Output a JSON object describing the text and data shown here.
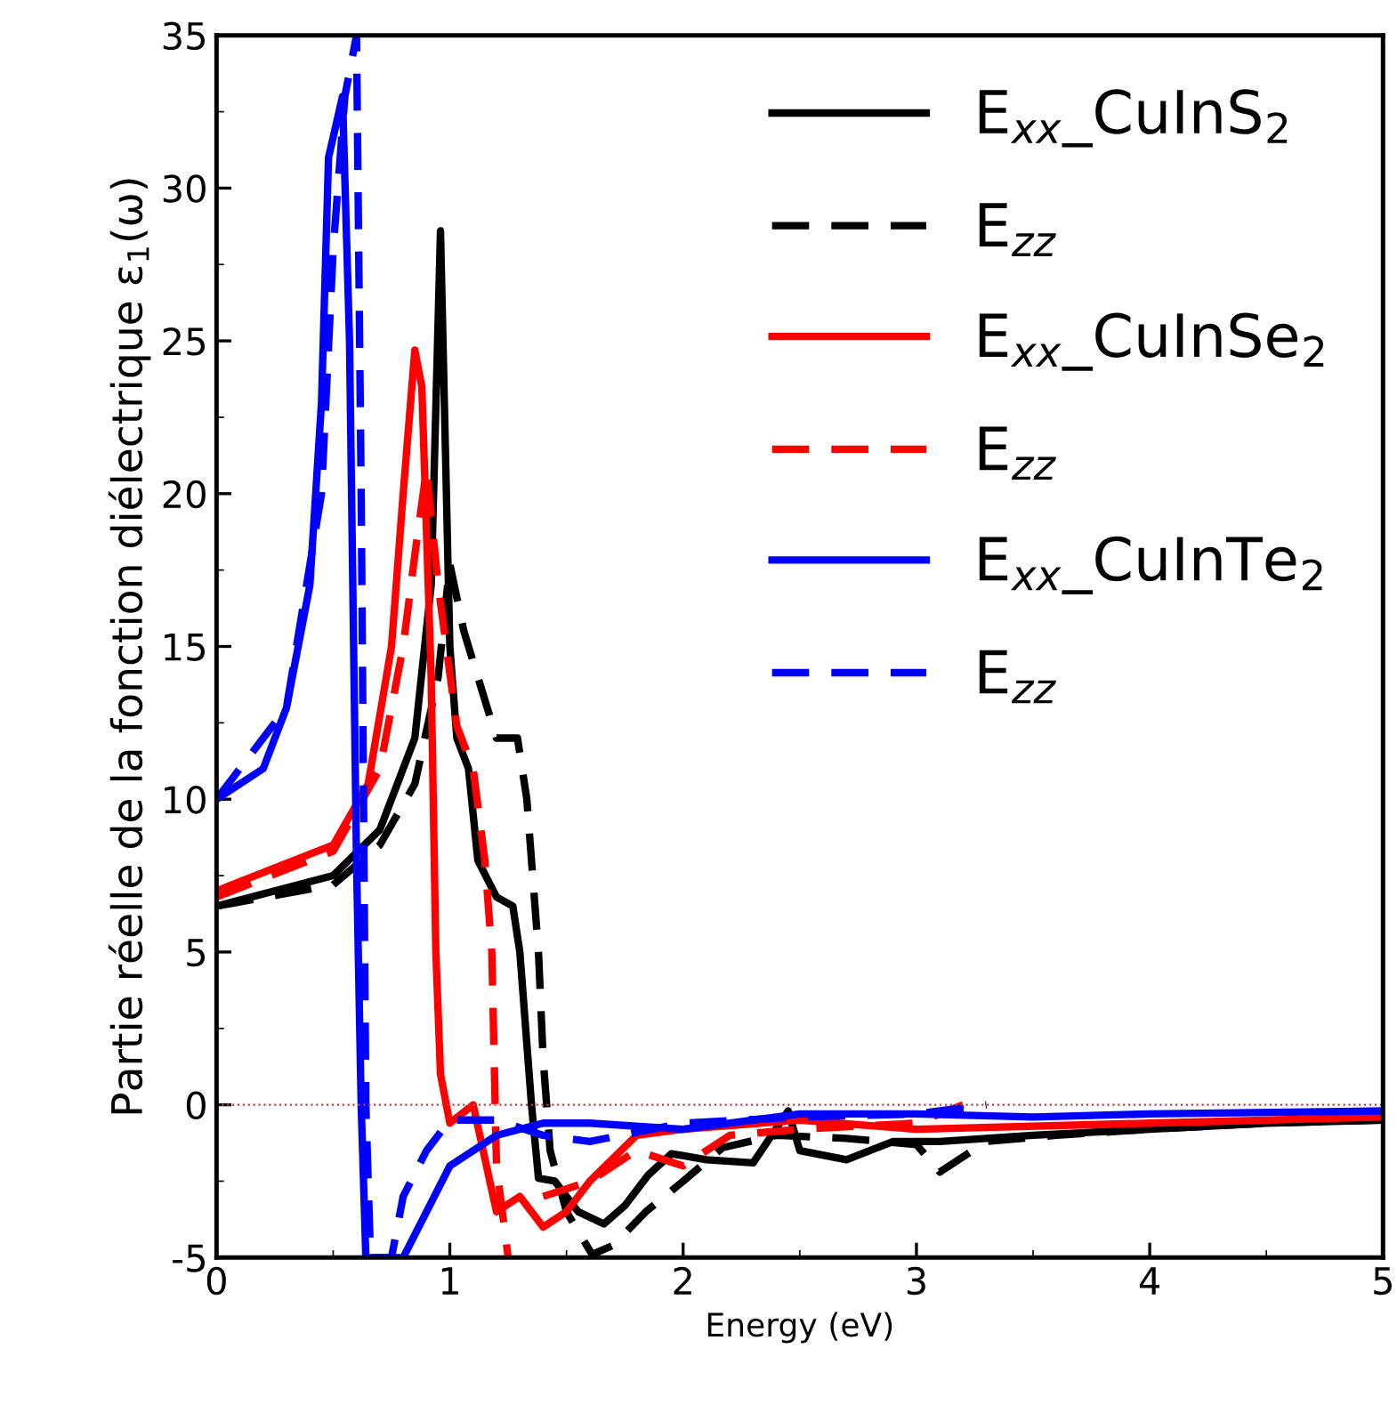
{
  "chart_data": {
    "type": "line",
    "xlabel": "Energy (eV)",
    "ylabel": "Partie réelle de la fonction diélectrique ε$_{1}$(ω)",
    "xlim": [
      0,
      5
    ],
    "ylim": [
      -5,
      35
    ],
    "xticks": [
      0,
      1,
      2,
      3,
      4,
      5
    ],
    "yticks": [
      -5,
      0,
      5,
      10,
      15,
      20,
      25,
      30,
      35
    ],
    "legend": "top right",
    "grid": false,
    "ref_lines": [
      {
        "axis": "y",
        "value": 0,
        "color": "#c04040",
        "line_style": "dotted"
      }
    ],
    "series": [
      {
        "name": "E$_{xx}$_CuInS$_{2}$",
        "color": "#000000",
        "line_style": "solid",
        "x": [
          0,
          0.5,
          0.7,
          0.85,
          0.92,
          0.96,
          1.0,
          1.03,
          1.08,
          1.12,
          1.2,
          1.27,
          1.3,
          1.35,
          1.38,
          1.45,
          1.55,
          1.66,
          1.75,
          1.85,
          1.95,
          2.1,
          2.3,
          2.45,
          2.5,
          2.7,
          2.9,
          3.1,
          3.5,
          4.0,
          4.5,
          5.0
        ],
        "values": [
          6.5,
          7.5,
          9,
          12,
          17,
          28.6,
          15,
          12,
          11,
          8,
          6.8,
          6.5,
          5,
          0,
          -2.4,
          -2.5,
          -3.5,
          -3.9,
          -3.3,
          -2.3,
          -1.6,
          -1.8,
          -1.9,
          -0.2,
          -1.5,
          -1.8,
          -1.2,
          -1.2,
          -1.0,
          -0.8,
          -0.6,
          -0.5
        ]
      },
      {
        "name": "E$_{zz}$",
        "color": "#000000",
        "line_style": "dashed",
        "x": [
          0,
          0.5,
          0.7,
          0.85,
          0.95,
          1.0,
          1.06,
          1.12,
          1.2,
          1.29,
          1.33,
          1.38,
          1.4,
          1.43,
          1.5,
          1.61,
          1.7,
          1.84,
          2.0,
          2.17,
          2.4,
          2.7,
          3.0,
          3.1,
          3.3,
          3.6,
          4.0,
          4.5,
          5.0
        ],
        "values": [
          6.5,
          7.2,
          8.5,
          10.5,
          14,
          17.7,
          15.5,
          14,
          12,
          12,
          10,
          5,
          1.5,
          -1.5,
          -3.5,
          -4.9,
          -4.6,
          -3.5,
          -2.5,
          -1.4,
          -1.0,
          -1.1,
          -1.3,
          -2.2,
          -1.2,
          -1.0,
          -0.8,
          -0.6,
          -0.5
        ]
      },
      {
        "name": "E$_{xx}$_CuInSe$_{2}$",
        "color": "#ff0000",
        "line_style": "solid",
        "x": [
          0,
          0.5,
          0.65,
          0.75,
          0.8,
          0.85,
          0.88,
          0.92,
          0.94,
          0.96,
          1.0,
          1.1,
          1.2,
          1.3,
          1.4,
          1.5,
          1.6,
          1.8,
          2.0,
          2.5,
          3.0,
          4.0,
          5.0
        ],
        "values": [
          7.0,
          8.5,
          10.5,
          15,
          20,
          24.7,
          23.5,
          14,
          5,
          1,
          -0.6,
          0,
          -3.5,
          -3,
          -4,
          -3.5,
          -2.5,
          -1.0,
          -0.8,
          -0.5,
          -0.8,
          -0.6,
          -0.4
        ]
      },
      {
        "name": "E$_{zz}$",
        "color": "#ff0000",
        "line_style": "dashed",
        "x": [
          0,
          0.5,
          0.7,
          0.8,
          0.85,
          0.9,
          0.95,
          1.03,
          1.1,
          1.15,
          1.18,
          1.2,
          1.25,
          1.3,
          1.4,
          1.6,
          1.8,
          2.0,
          2.2,
          2.5,
          3.0,
          3.2
        ],
        "values": [
          6.8,
          8.3,
          11,
          15,
          18,
          20.8,
          17,
          12.4,
          11,
          8,
          5,
          -2,
          -5,
          null,
          -3,
          -2.5,
          -1.5,
          -2.0,
          -1.0,
          -0.8,
          -0.6,
          0
        ]
      },
      {
        "name": "E$_{xx}$_CuInTe$_{2}$",
        "color": "#0000ff",
        "line_style": "solid",
        "x": [
          0,
          0.2,
          0.3,
          0.4,
          0.45,
          0.48,
          0.54,
          0.57,
          0.6,
          0.62,
          0.64,
          0.8,
          0.9,
          1.0,
          1.2,
          1.4,
          1.6,
          2.0,
          2.5,
          3.0,
          3.5,
          4.0,
          5.0
        ],
        "values": [
          10,
          11,
          13,
          17,
          23,
          31,
          33,
          25,
          8,
          0,
          -5,
          -5,
          -3.5,
          -2,
          -1,
          -0.6,
          -0.6,
          -0.8,
          -0.3,
          -0.3,
          -0.4,
          -0.3,
          -0.2
        ]
      },
      {
        "name": "E$_{zz}$",
        "color": "#0000ff",
        "line_style": "dashed",
        "x": [
          0,
          0.3,
          0.45,
          0.5,
          0.55,
          0.6,
          0.62,
          0.64,
          0.66,
          0.75,
          0.8,
          0.9,
          1.0,
          1.2,
          1.4,
          1.6,
          2.0,
          2.5,
          3.0,
          3.3
        ],
        "values": [
          10,
          13,
          20,
          28,
          33,
          35,
          20,
          0,
          -5,
          -5,
          -3,
          -1.5,
          -0.5,
          -0.5,
          -1.0,
          -1.2,
          -0.6,
          -0.4,
          -0.3,
          0
        ]
      }
    ]
  }
}
